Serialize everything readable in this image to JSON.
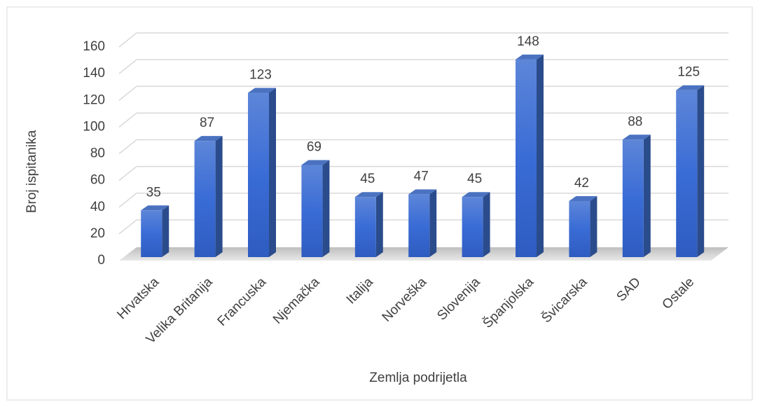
{
  "chart_data": {
    "type": "bar3d",
    "x_label": "Zemlja podrijetla",
    "y_label": "Broj ispitanika",
    "categories": [
      "Hrvatska",
      "Velika Britanija",
      "Francuska",
      "Njemačka",
      "Italija",
      "Norveška",
      "Slovenija",
      "Španjolska",
      "Švicarska",
      "SAD",
      "Ostale"
    ],
    "values": [
      35,
      87,
      123,
      69,
      45,
      47,
      45,
      148,
      42,
      88,
      125
    ],
    "color": "#3b6fd6",
    "ylim": [
      0,
      160
    ],
    "yticks": [
      0,
      20,
      40,
      60,
      80,
      100,
      120,
      140,
      160
    ],
    "grid": true
  }
}
